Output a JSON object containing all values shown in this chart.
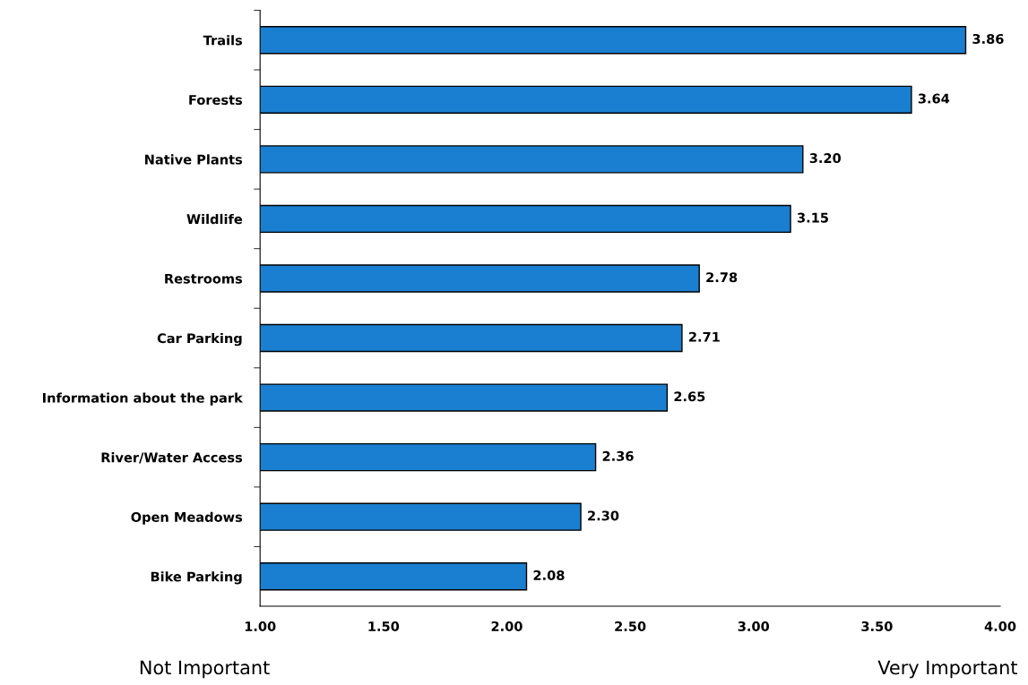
{
  "chart_data": {
    "type": "bar",
    "orientation": "horizontal",
    "categories": [
      "Trails",
      "Forests",
      "Native Plants",
      "Wildlife",
      "Restrooms",
      "Car Parking",
      "Information about the park",
      "River/Water Access",
      "Open Meadows",
      "Bike Parking"
    ],
    "values": [
      3.86,
      3.64,
      3.2,
      3.15,
      2.78,
      2.71,
      2.65,
      2.36,
      2.3,
      2.08
    ],
    "value_labels": [
      "3.86",
      "3.64",
      "3.20",
      "3.15",
      "2.78",
      "2.71",
      "2.65",
      "2.36",
      "2.30",
      "2.08"
    ],
    "color": "#1a7fd0",
    "xlim": [
      1,
      4
    ],
    "xticks": [
      {
        "value": 1,
        "label": "1.00"
      },
      {
        "value": 1.5,
        "label": "1.50"
      },
      {
        "value": 2,
        "label": "2.00"
      },
      {
        "value": 2.5,
        "label": "2.50"
      },
      {
        "value": 3,
        "label": "3.00"
      },
      {
        "value": 3.5,
        "label": "3.50"
      },
      {
        "value": 4,
        "label": "4.00"
      }
    ],
    "annotations": [
      "Not Important",
      "Very Important"
    ],
    "grid": false,
    "legend": false
  }
}
